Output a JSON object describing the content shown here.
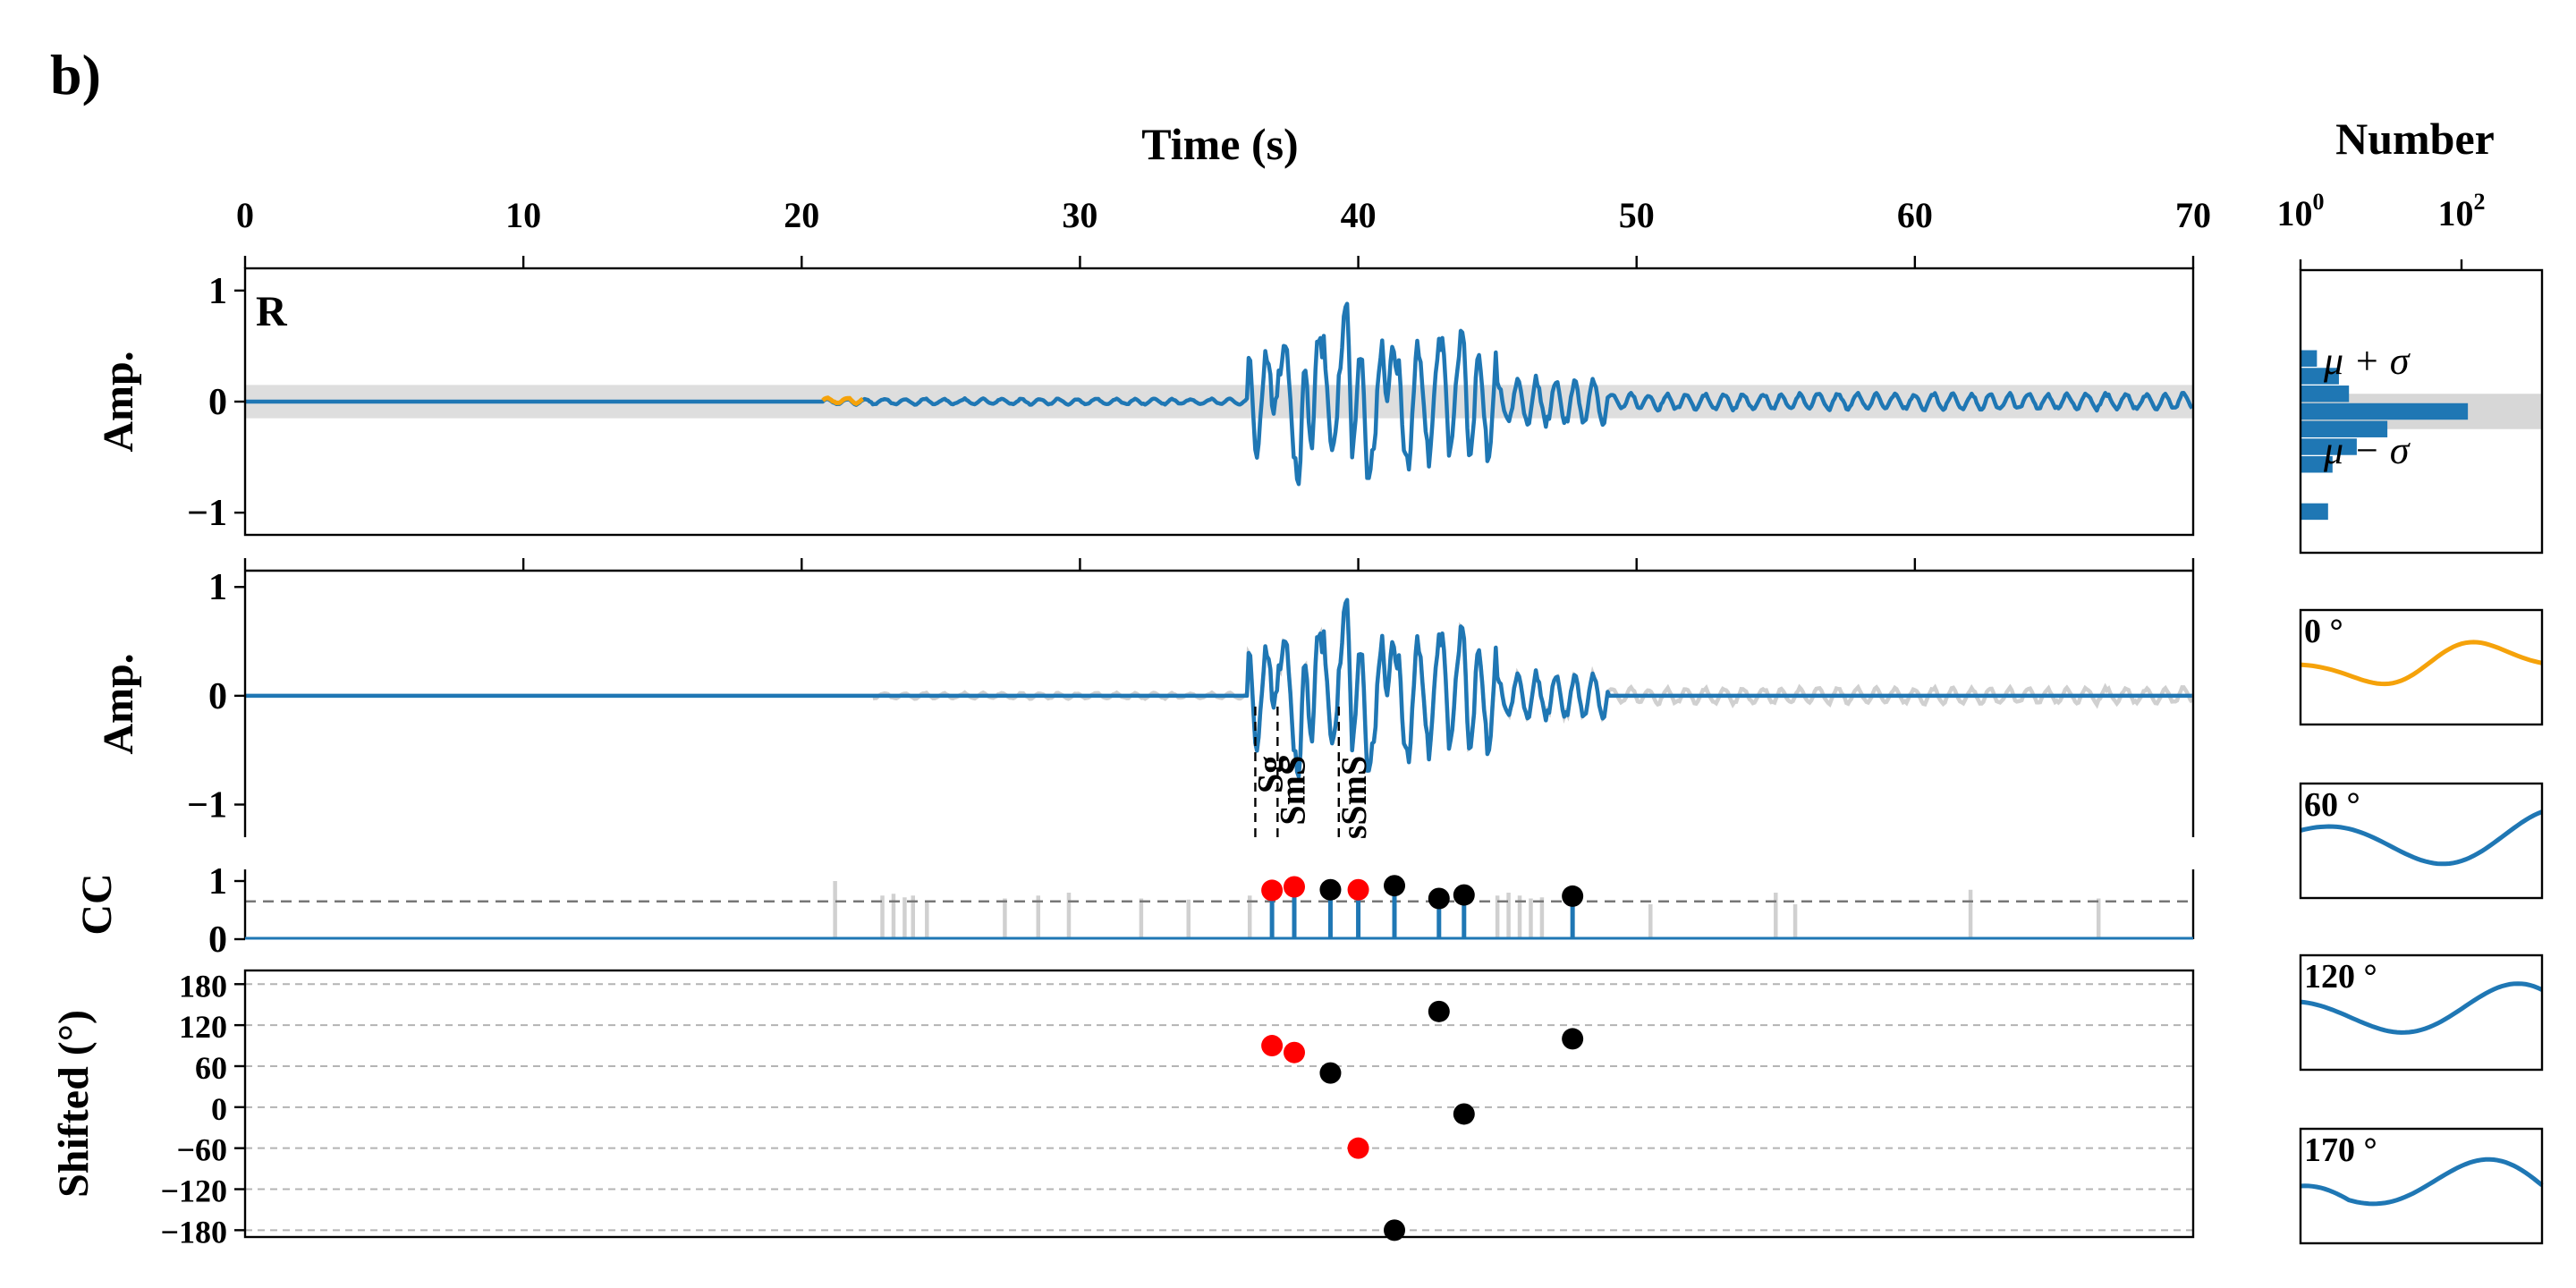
{
  "chart_data": {
    "type": "line",
    "panel_label": "b)",
    "component_label": "R",
    "xlabel": "Time (s)",
    "xlim": [
      0,
      70
    ],
    "xticks": [
      0,
      10,
      20,
      30,
      40,
      50,
      60,
      70
    ],
    "colors": {
      "main": "#1f77b4",
      "highlight": "#f5a20a",
      "neutral": "#d0d0d0",
      "selected_point": "#ff0000",
      "other_point": "#000000"
    },
    "waveform_panel": {
      "ylabel": "Amp.",
      "ylim": [
        -1.2,
        1.2
      ],
      "yticks": [
        1,
        0,
        -1
      ],
      "noise_band": [
        -0.15,
        0.15
      ],
      "highlight_window": [
        20.7,
        22.2
      ]
    },
    "reconstruction_panel": {
      "ylabel": "Amp.",
      "ylim": [
        -1.3,
        1.15
      ],
      "yticks": [
        1,
        0,
        -1
      ],
      "fit_window": [
        36.0,
        49.0
      ],
      "phases": [
        {
          "label": "Sg",
          "time": 36.3
        },
        {
          "label": "SmS",
          "time": 37.1
        },
        {
          "label": "sSmS",
          "time": 39.3
        }
      ]
    },
    "cc_panel": {
      "ylabel": "CC",
      "ylim": [
        0,
        1.2
      ],
      "yticks": [
        1,
        0
      ],
      "threshold": 0.65,
      "gray_stems": [
        {
          "t": 21.2,
          "v": 1.0
        },
        {
          "t": 22.9,
          "v": 0.75
        },
        {
          "t": 23.3,
          "v": 0.78
        },
        {
          "t": 23.7,
          "v": 0.72
        },
        {
          "t": 24.0,
          "v": 0.75
        },
        {
          "t": 24.5,
          "v": 0.65
        },
        {
          "t": 27.3,
          "v": 0.7
        },
        {
          "t": 28.5,
          "v": 0.75
        },
        {
          "t": 29.6,
          "v": 0.8
        },
        {
          "t": 32.2,
          "v": 0.7
        },
        {
          "t": 33.9,
          "v": 0.68
        },
        {
          "t": 36.1,
          "v": 0.75
        },
        {
          "t": 45.0,
          "v": 0.75
        },
        {
          "t": 45.4,
          "v": 0.8
        },
        {
          "t": 45.8,
          "v": 0.75
        },
        {
          "t": 46.2,
          "v": 0.7
        },
        {
          "t": 46.6,
          "v": 0.72
        },
        {
          "t": 50.5,
          "v": 0.6
        },
        {
          "t": 55.0,
          "v": 0.8
        },
        {
          "t": 55.7,
          "v": 0.6
        },
        {
          "t": 62.0,
          "v": 0.85
        },
        {
          "t": 66.6,
          "v": 0.7
        }
      ],
      "picks": [
        {
          "t": 36.9,
          "cc": 0.84,
          "shift": 90,
          "selected": true
        },
        {
          "t": 37.7,
          "cc": 0.9,
          "shift": 80,
          "selected": true
        },
        {
          "t": 39.0,
          "cc": 0.85,
          "shift": 50,
          "selected": false
        },
        {
          "t": 40.0,
          "cc": 0.85,
          "shift": -60,
          "selected": true
        },
        {
          "t": 41.3,
          "cc": 0.92,
          "shift": -180,
          "selected": false
        },
        {
          "t": 42.9,
          "cc": 0.7,
          "shift": 140,
          "selected": false
        },
        {
          "t": 43.8,
          "cc": 0.76,
          "shift": -10,
          "selected": false
        },
        {
          "t": 47.7,
          "cc": 0.74,
          "shift": 100,
          "selected": false
        }
      ]
    },
    "shift_panel": {
      "ylabel": "Shifted (°)",
      "ylim": [
        -190,
        200
      ],
      "yticks": [
        180,
        120,
        60,
        0,
        -60,
        -120,
        -180
      ]
    },
    "histogram": {
      "xlabel": "Number",
      "xscale": "log",
      "xticks": [
        "10^0",
        "10^2"
      ],
      "upper_label": "μ + σ",
      "lower_label": "μ − σ",
      "band": [
        -0.15,
        0.15
      ],
      "bins": [
        {
          "center": 0.45,
          "count": 1.6
        },
        {
          "center": 0.3,
          "count": 3.0
        },
        {
          "center": 0.15,
          "count": 4.0
        },
        {
          "center": 0.0,
          "count": 120
        },
        {
          "center": -0.15,
          "count": 12
        },
        {
          "center": -0.3,
          "count": 5
        },
        {
          "center": -0.45,
          "count": 2.5
        },
        {
          "center": -0.85,
          "count": 2.2
        }
      ]
    },
    "shifted_wavelets": [
      {
        "label": "0 °",
        "color": "orange"
      },
      {
        "label": "60 °",
        "color": "blue"
      },
      {
        "label": "120 °",
        "color": "blue"
      },
      {
        "label": "170 °",
        "color": "blue"
      }
    ]
  }
}
